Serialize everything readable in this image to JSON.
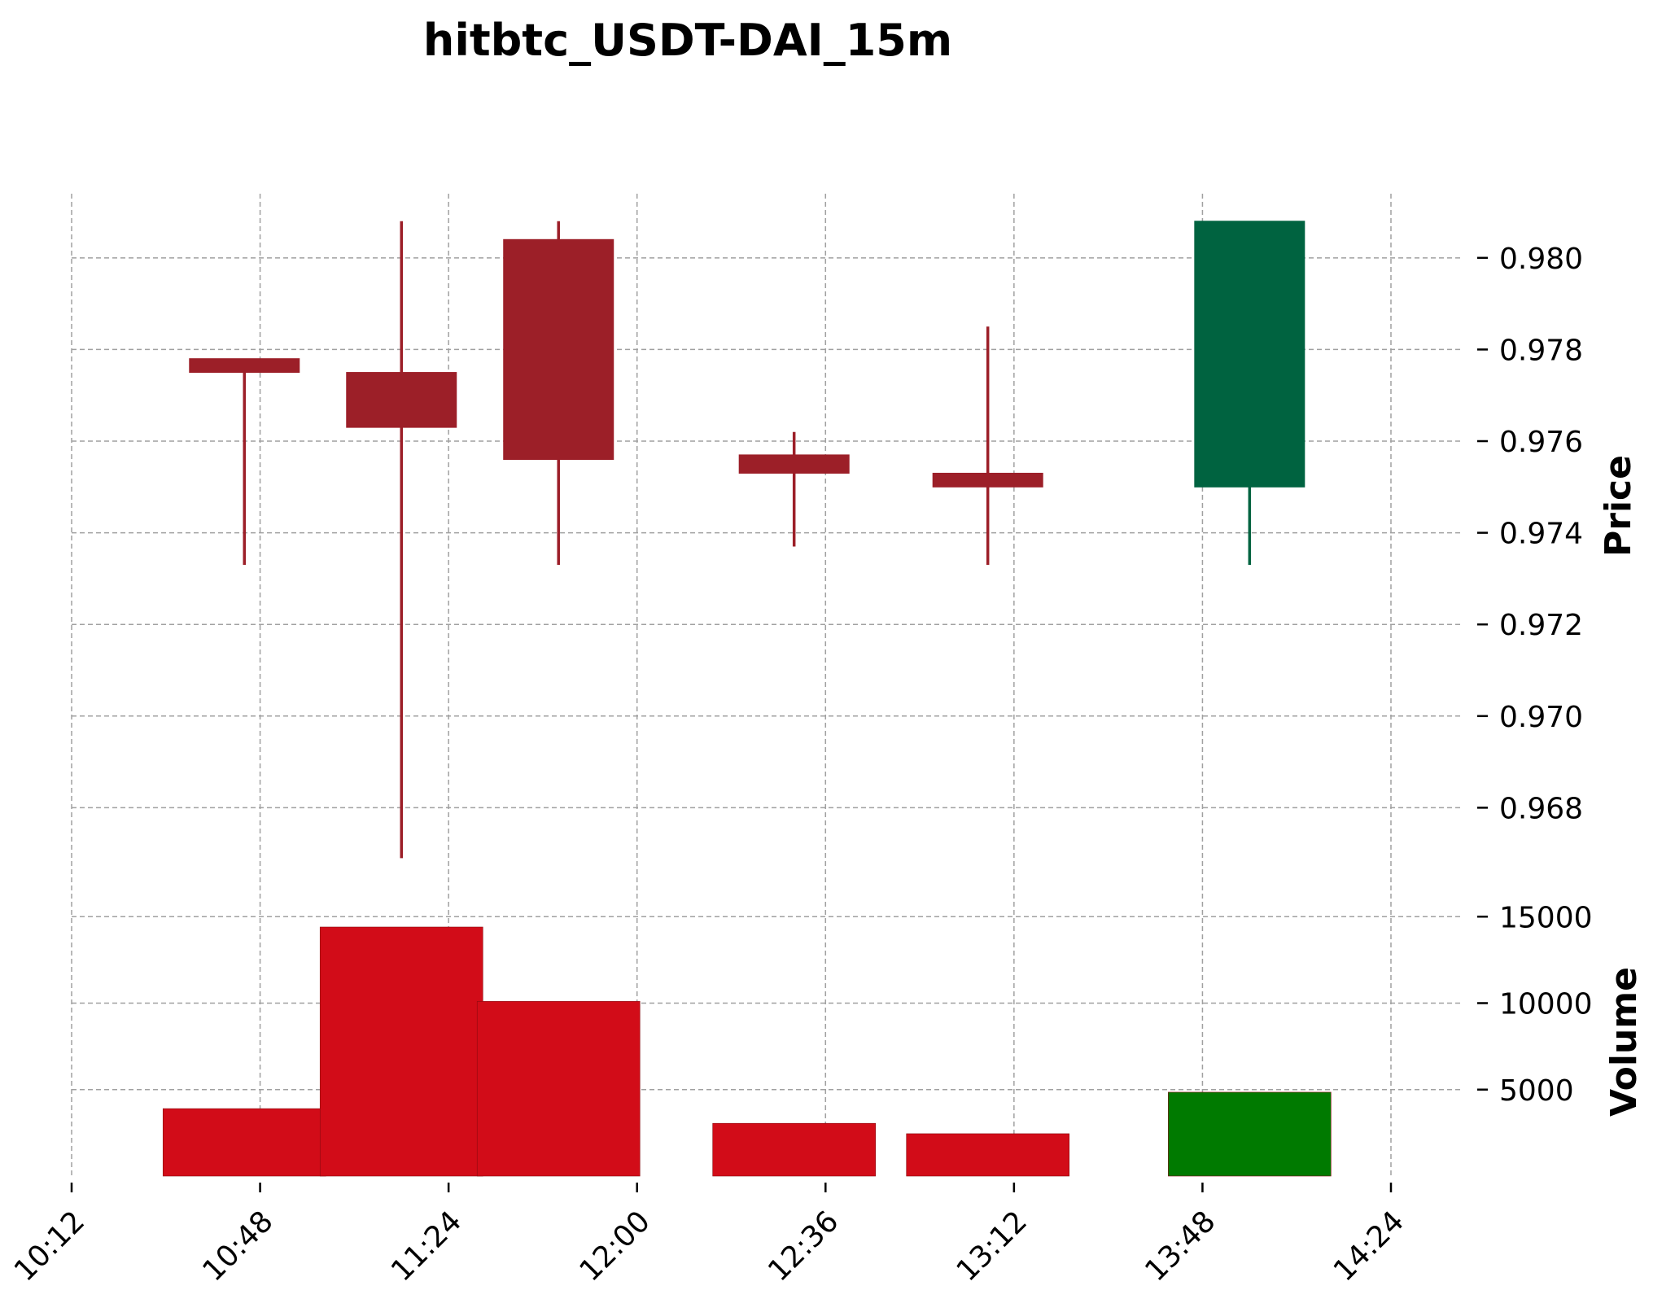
{
  "chart_data": {
    "type": "candlestick",
    "title": "hitbtc_USDT-DAI_15m",
    "xlabel": "",
    "price_axis": {
      "label": "Price",
      "ylim": [
        0.966,
        0.9814
      ],
      "ticks": [
        "0.980",
        "0.978",
        "0.976",
        "0.974",
        "0.972",
        "0.970",
        "0.968"
      ]
    },
    "volume_axis": {
      "label": "Volume",
      "ylim": [
        0,
        16000
      ],
      "ticks": [
        "15000",
        "10000",
        "5000"
      ]
    },
    "x_ticks": [
      "10:12",
      "10:48",
      "11:24",
      "12:00",
      "12:36",
      "13:12",
      "13:48",
      "14:24"
    ],
    "grid": true,
    "candles": [
      {
        "time": "10:45",
        "open": 0.9778,
        "high": 0.9778,
        "low": 0.9733,
        "close": 0.9775,
        "volume": 3900,
        "direction": "down"
      },
      {
        "time": "11:15",
        "open": 0.9775,
        "high": 0.9808,
        "low": 0.9669,
        "close": 0.9763,
        "volume": 14400,
        "direction": "down"
      },
      {
        "time": "11:45",
        "open": 0.9804,
        "high": 0.9808,
        "low": 0.9733,
        "close": 0.9756,
        "volume": 10100,
        "direction": "down"
      },
      {
        "time": "12:30",
        "open": 0.9757,
        "high": 0.9762,
        "low": 0.9737,
        "close": 0.9753,
        "volume": 3050,
        "direction": "down"
      },
      {
        "time": "13:07",
        "open": 0.9753,
        "high": 0.9785,
        "low": 0.9733,
        "close": 0.975,
        "volume": 2450,
        "direction": "down"
      },
      {
        "time": "13:57",
        "open": 0.975,
        "high": 0.9808,
        "low": 0.9733,
        "close": 0.9808,
        "volume": 4850,
        "direction": "up"
      }
    ],
    "colors": {
      "down_candle": "#9c1f28",
      "up_candle": "#006340",
      "down_volume": "#d20c18",
      "up_volume": "#007a00",
      "grid": "#a0a0a0"
    }
  }
}
